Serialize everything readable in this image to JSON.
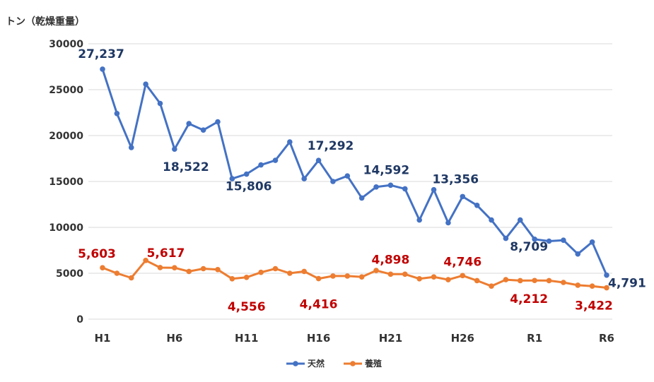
{
  "chart_data": {
    "type": "line",
    "unit_label": "トン（乾燥重量）",
    "ylim": [
      0,
      30000
    ],
    "y_ticks": [
      "30000",
      "25000",
      "20000",
      "15000",
      "10000",
      "5000",
      "0"
    ],
    "grid": true,
    "legend_position": "bottom",
    "x": [
      "H1",
      "H2",
      "H3",
      "H4",
      "H5",
      "H6",
      "H7",
      "H8",
      "H9",
      "H10",
      "H11",
      "H12",
      "H13",
      "H14",
      "H15",
      "H16",
      "H17",
      "H18",
      "H19",
      "H20",
      "H21",
      "H22",
      "H23",
      "H24",
      "H25",
      "H26",
      "H27",
      "H28",
      "H29",
      "H30",
      "R1",
      "R2",
      "R3",
      "R4",
      "R5",
      "R6"
    ],
    "x_tick_labels": [
      "H1",
      "",
      "",
      "",
      "",
      "H6",
      "",
      "",
      "",
      "",
      "H11",
      "",
      "",
      "",
      "",
      "H16",
      "",
      "",
      "",
      "",
      "H21",
      "",
      "",
      "",
      "",
      "H26",
      "",
      "",
      "",
      "",
      "R1",
      "",
      "",
      "",
      "",
      "R6"
    ],
    "series": [
      {
        "name": "天然",
        "color": "#4472C4",
        "label_color": "#1F3864",
        "values": [
          27237,
          22400,
          18700,
          25600,
          23500,
          18522,
          21300,
          20600,
          21500,
          15300,
          15806,
          16800,
          17300,
          19300,
          15300,
          17292,
          15000,
          15600,
          13200,
          14400,
          14592,
          14200,
          10800,
          14100,
          10500,
          13356,
          12400,
          10800,
          8800,
          10800,
          8709,
          8500,
          8600,
          7100,
          8400,
          4791
        ],
        "labels": [
          {
            "index": 0,
            "text": "27,237"
          },
          {
            "index": 5,
            "text": "18,522"
          },
          {
            "index": 10,
            "text": "15,806"
          },
          {
            "index": 15,
            "text": "17,292"
          },
          {
            "index": 20,
            "text": "14,592"
          },
          {
            "index": 25,
            "text": "13,356"
          },
          {
            "index": 30,
            "text": "8,709"
          },
          {
            "index": 35,
            "text": "4,791"
          }
        ]
      },
      {
        "name": "養殖",
        "color": "#ED7D31",
        "label_color": "#C00000",
        "values": [
          5603,
          5000,
          4500,
          6400,
          5617,
          5600,
          5200,
          5500,
          5400,
          4400,
          4556,
          5100,
          5500,
          5000,
          5200,
          4416,
          4700,
          4700,
          4600,
          5300,
          4898,
          4900,
          4400,
          4600,
          4300,
          4746,
          4200,
          3600,
          4300,
          4200,
          4212,
          4200,
          4000,
          3700,
          3600,
          3422
        ],
        "labels": [
          {
            "index": 0,
            "text": "5,603"
          },
          {
            "index": 4,
            "text": "5,617"
          },
          {
            "index": 10,
            "text": "4,556"
          },
          {
            "index": 15,
            "text": "4,416"
          },
          {
            "index": 20,
            "text": "4,898"
          },
          {
            "index": 25,
            "text": "4,746"
          },
          {
            "index": 30,
            "text": "4,212"
          },
          {
            "index": 35,
            "text": "3,422"
          }
        ]
      }
    ]
  }
}
